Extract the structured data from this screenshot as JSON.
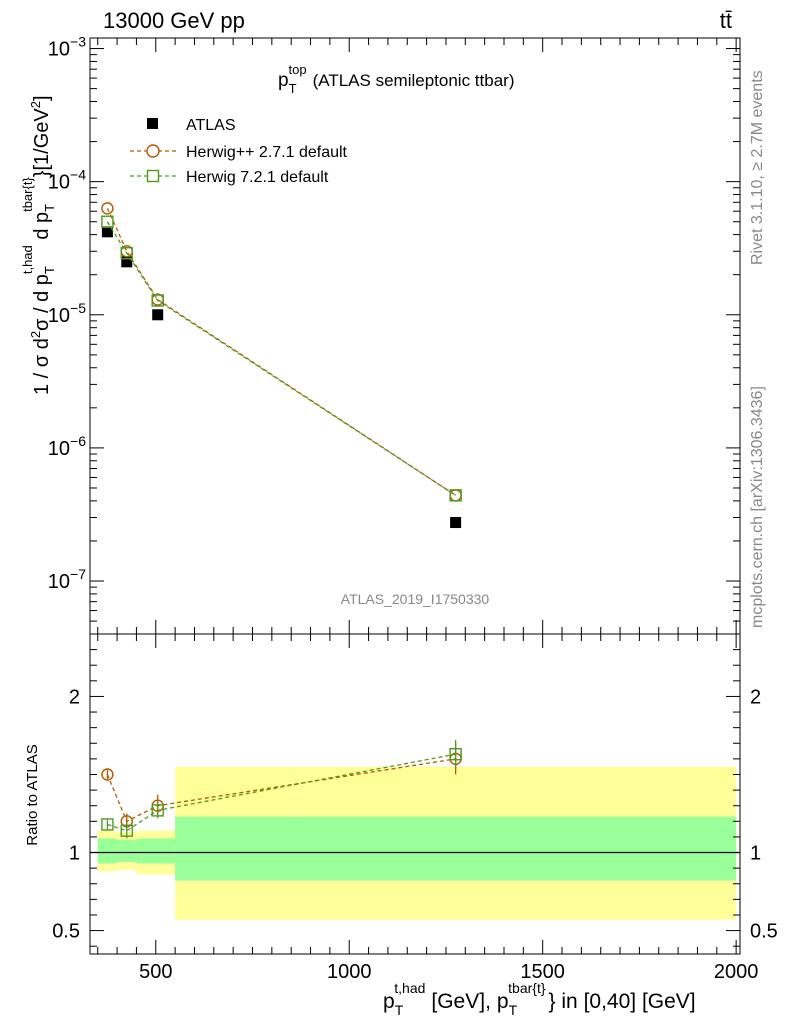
{
  "header": {
    "energy_label": "13000 GeV pp",
    "process_label": "tt̄",
    "side_label_top": "Rivet 3.1.10, ≥ 2.7M events",
    "side_label_bottom": "mcplots.cern.ch [arXiv:1306.3436]",
    "analysis_id": "ATLAS_2019_I1750330"
  },
  "chart_data": [
    {
      "panel": "main",
      "type": "line",
      "title": {
        "base": "p",
        "sub": "T",
        "sup": "top",
        "rest": "(ATLAS semileptonic ttbar)"
      },
      "ylabel": "1 / σ d²σ / d p_T^{t,had} d p_T^{tbar{t}} [1/GeV²]",
      "yscale": "log",
      "ylim": [
        4e-08,
        0.0012
      ],
      "xlim": [
        330,
        2010
      ],
      "y_ticks": [
        {
          "value": 1e-07,
          "label": "10",
          "exp": "−7"
        },
        {
          "value": 1e-06,
          "label": "10",
          "exp": "−6"
        },
        {
          "value": 1e-05,
          "label": "10",
          "exp": "−5"
        },
        {
          "value": 0.0001,
          "label": "10",
          "exp": "−4"
        },
        {
          "value": 0.001,
          "label": "10",
          "exp": "−3"
        }
      ],
      "legend": {
        "position": "top-left",
        "entries": [
          "ATLAS",
          "Herwig++ 2.7.1 default",
          "Herwig 7.2.1 default"
        ]
      },
      "series": [
        {
          "name": "ATLAS",
          "marker": "square-filled",
          "color": "#000000",
          "x": [
            375,
            425,
            505,
            1275
          ],
          "y": [
            4.2e-05,
            2.5e-05,
            1e-05,
            2.75e-07
          ]
        },
        {
          "name": "Herwig++ 2.7.1 default",
          "marker": "circle-open",
          "color": "#b35900",
          "x": [
            375,
            425,
            505,
            1275
          ],
          "y": [
            6.3e-05,
            3e-05,
            1.3e-05,
            4.4e-07
          ]
        },
        {
          "name": "Herwig 7.2.1 default",
          "marker": "square-open",
          "color": "#4d9a1f",
          "x": [
            375,
            425,
            505,
            1275
          ],
          "y": [
            5e-05,
            2.9e-05,
            1.28e-05,
            4.4e-07
          ]
        }
      ]
    },
    {
      "panel": "ratio",
      "type": "line",
      "ylabel": "Ratio to ATLAS",
      "ylim": [
        0.35,
        2.4
      ],
      "xlim": [
        330,
        2010
      ],
      "y_ticks": [
        {
          "value": 0.5,
          "label": "0.5"
        },
        {
          "value": 1,
          "label": "1"
        },
        {
          "value": 2,
          "label": "2"
        }
      ],
      "x_ticks": [
        {
          "value": 500,
          "label": "500"
        },
        {
          "value": 1000,
          "label": "1000"
        },
        {
          "value": 1500,
          "label": "1500"
        },
        {
          "value": 2000,
          "label": "2000"
        }
      ],
      "xlabel": {
        "p1_sup": "t,had",
        "unit1": "[GeV],",
        "p2_sup": "tbar{t}",
        "rest": "} in [0,40] [GeV]"
      },
      "bands": [
        {
          "x0": 350,
          "x1": 400,
          "inner": [
            0.93,
            1.09
          ],
          "outer": [
            0.88,
            1.14
          ]
        },
        {
          "x0": 400,
          "x1": 450,
          "inner": [
            0.94,
            1.08
          ],
          "outer": [
            0.89,
            1.13
          ]
        },
        {
          "x0": 450,
          "x1": 550,
          "inner": [
            0.93,
            1.09
          ],
          "outer": [
            0.86,
            1.14
          ]
        },
        {
          "x0": 550,
          "x1": 2000,
          "inner": [
            0.82,
            1.23
          ],
          "outer": [
            0.57,
            1.55
          ]
        }
      ],
      "band_colors": {
        "inner": "#99ff99",
        "outer": "#ffff99"
      },
      "series": [
        {
          "name": "Herwig++ 2.7.1 default",
          "marker": "circle-open",
          "color": "#b35900",
          "x": [
            375,
            425,
            505,
            1275
          ],
          "y": [
            1.5,
            1.2,
            1.3,
            1.6
          ],
          "err": [
            0.03,
            0.05,
            0.07,
            0.1
          ]
        },
        {
          "name": "Herwig 7.2.1 default",
          "marker": "square-open",
          "color": "#4d9a1f",
          "x": [
            375,
            425,
            505,
            1275
          ],
          "y": [
            1.18,
            1.14,
            1.27,
            1.63
          ],
          "err": [
            0.03,
            0.05,
            0.05,
            0.09
          ]
        }
      ]
    }
  ]
}
